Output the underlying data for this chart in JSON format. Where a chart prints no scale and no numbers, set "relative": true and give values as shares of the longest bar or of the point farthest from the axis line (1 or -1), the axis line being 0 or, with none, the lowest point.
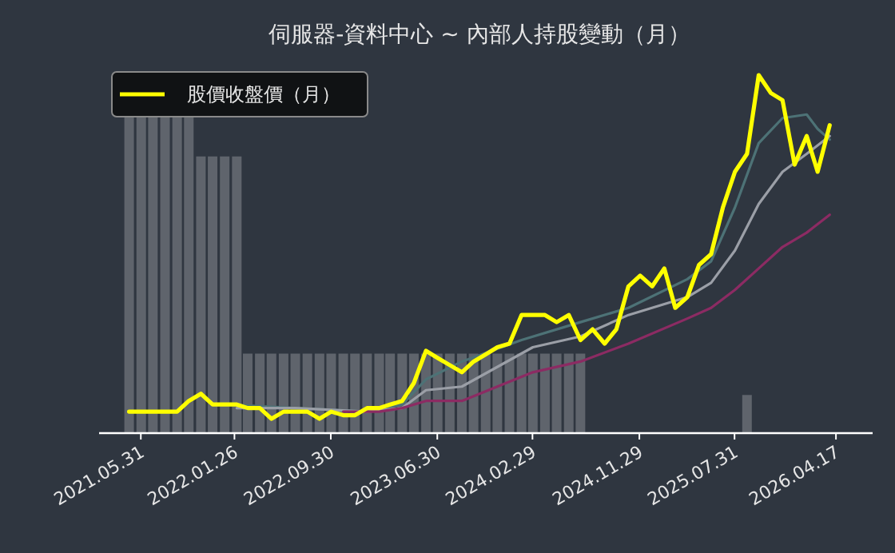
{
  "chart_data": {
    "type": "bar",
    "title": "伺服器-資料中心 ~ 內部人持股變動（月）",
    "relative": true,
    "legend": "top left",
    "x": [
      "2021-05",
      "2021-06",
      "2021-07",
      "2021-08",
      "2021-09",
      "2021-10",
      "2021-11",
      "2021-12",
      "2022-01",
      "2022-02",
      "2022-03",
      "2022-04",
      "2022-05",
      "2022-06",
      "2022-07",
      "2022-08",
      "2022-09",
      "2022-10",
      "2022-11",
      "2022-12",
      "2023-01",
      "2023-02",
      "2023-03",
      "2023-04",
      "2023-05",
      "2023-06",
      "2023-07",
      "2023-08",
      "2023-09",
      "2023-10",
      "2023-11",
      "2023-12",
      "2024-01",
      "2024-02",
      "2024-03",
      "2024-04",
      "2024-05",
      "2024-06",
      "2024-07",
      "2024-08",
      "2024-09",
      "2024-10",
      "2024-11",
      "2024-12",
      "2025-01",
      "2025-02",
      "2025-03",
      "2025-04",
      "2025-05",
      "2025-06",
      "2025-07",
      "2025-08",
      "2025-09",
      "2025-10",
      "2025-11",
      "2025-12",
      "2026-01",
      "2026-02",
      "2026-03",
      "2026-04"
    ],
    "xlim": [
      "2021-02-13",
      "2026-07-20"
    ],
    "xticks": [
      {
        "value": "2021-05-31",
        "label": "2021.05.31"
      },
      {
        "value": "2022-01-26",
        "label": "2022.01.26"
      },
      {
        "value": "2022-09-30",
        "label": "2022.09.30"
      },
      {
        "value": "2023-06-30",
        "label": "2023.06.30"
      },
      {
        "value": "2024-02-29",
        "label": "2024.02.29"
      },
      {
        "value": "2024-11-29",
        "label": "2024.11.29"
      },
      {
        "value": "2025-07-31",
        "label": "2025.07.31"
      },
      {
        "value": "2026-04-17",
        "label": "2026.04.17"
      }
    ],
    "tick_labels": "x",
    "series": [
      {
        "color": "#5f646c",
        "values": [
          1,
          1,
          1,
          1,
          1,
          1,
          0.87,
          0.87,
          0.87,
          0.87,
          0.25,
          0.25,
          0.25,
          0.25,
          0.25,
          0.25,
          0.25,
          0.25,
          0.25,
          0.25,
          0.25,
          0.25,
          0.25,
          0.25,
          0.25,
          0.25,
          0.25,
          0.25,
          0.25,
          0.25,
          0.25,
          0.25,
          0.25,
          0.25,
          0.25,
          0.25,
          0.25,
          0.25,
          0.25,
          null,
          null,
          null,
          null,
          null,
          null,
          null,
          null,
          null,
          null,
          null,
          null,
          null,
          0.12,
          null,
          null,
          null,
          null,
          null,
          null,
          null
        ]
      },
      {
        "type": "line",
        "axis": "y2",
        "color": "#4d7276",
        "x": [
          "2022-01",
          "2022-07",
          "2023-01",
          "2023-04",
          "2023-06",
          "2023-09",
          "2024-02",
          "2024-07",
          "2024-11",
          "2025-04",
          "2025-06",
          "2025-08",
          "2025-10",
          "2025-12",
          "2026-02",
          "2026-03",
          "2026-04"
        ],
        "values": [
          0.08,
          0.07,
          0.06,
          0.08,
          0.15,
          0.2,
          0.26,
          0.31,
          0.35,
          0.43,
          0.48,
          0.63,
          0.81,
          0.88,
          0.89,
          0.85,
          0.82
        ]
      },
      {
        "type": "line",
        "axis": "y2",
        "color": "#9b9fa7",
        "x": [
          "2022-02",
          "2022-07",
          "2023-01",
          "2023-04",
          "2023-06",
          "2023-09",
          "2024-03",
          "2024-07",
          "2024-11",
          "2025-04",
          "2025-06",
          "2025-08",
          "2025-10",
          "2025-12",
          "2026-02",
          "2026-04"
        ],
        "values": [
          0.07,
          0.07,
          0.06,
          0.07,
          0.12,
          0.13,
          0.24,
          0.27,
          0.33,
          0.38,
          0.42,
          0.51,
          0.64,
          0.73,
          0.78,
          0.83
        ]
      },
      {
        "type": "line",
        "axis": "y2",
        "color": "#8c2b63",
        "x": [
          "2022-11",
          "2023-02",
          "2023-04",
          "2023-06",
          "2023-09",
          "2024-03",
          "2024-07",
          "2024-11",
          "2025-04",
          "2025-06",
          "2025-08",
          "2025-10",
          "2025-12",
          "2026-02",
          "2026-04"
        ],
        "values": [
          0.06,
          0.06,
          0.07,
          0.09,
          0.09,
          0.17,
          0.2,
          0.25,
          0.32,
          0.35,
          0.4,
          0.46,
          0.52,
          0.56,
          0.61
        ]
      },
      {
        "type": "line",
        "axis": "y2",
        "name": "股價收盤價（月）",
        "color": "#ffff00",
        "values": [
          0.06,
          0.06,
          0.06,
          0.06,
          0.06,
          0.09,
          0.11,
          0.08,
          0.08,
          0.08,
          0.07,
          0.07,
          0.04,
          0.06,
          0.06,
          0.06,
          0.04,
          0.06,
          0.05,
          0.05,
          0.07,
          0.07,
          0.08,
          0.09,
          0.14,
          0.23,
          0.21,
          0.19,
          0.17,
          0.2,
          0.22,
          0.24,
          0.25,
          0.33,
          0.33,
          0.33,
          0.31,
          0.33,
          0.26,
          0.29,
          0.25,
          0.29,
          0.41,
          0.44,
          0.41,
          0.46,
          0.35,
          0.38,
          0.47,
          0.5,
          0.63,
          0.73,
          0.78,
          1.0,
          0.95,
          0.93,
          0.75,
          0.83,
          0.73,
          0.86
        ]
      }
    ]
  }
}
